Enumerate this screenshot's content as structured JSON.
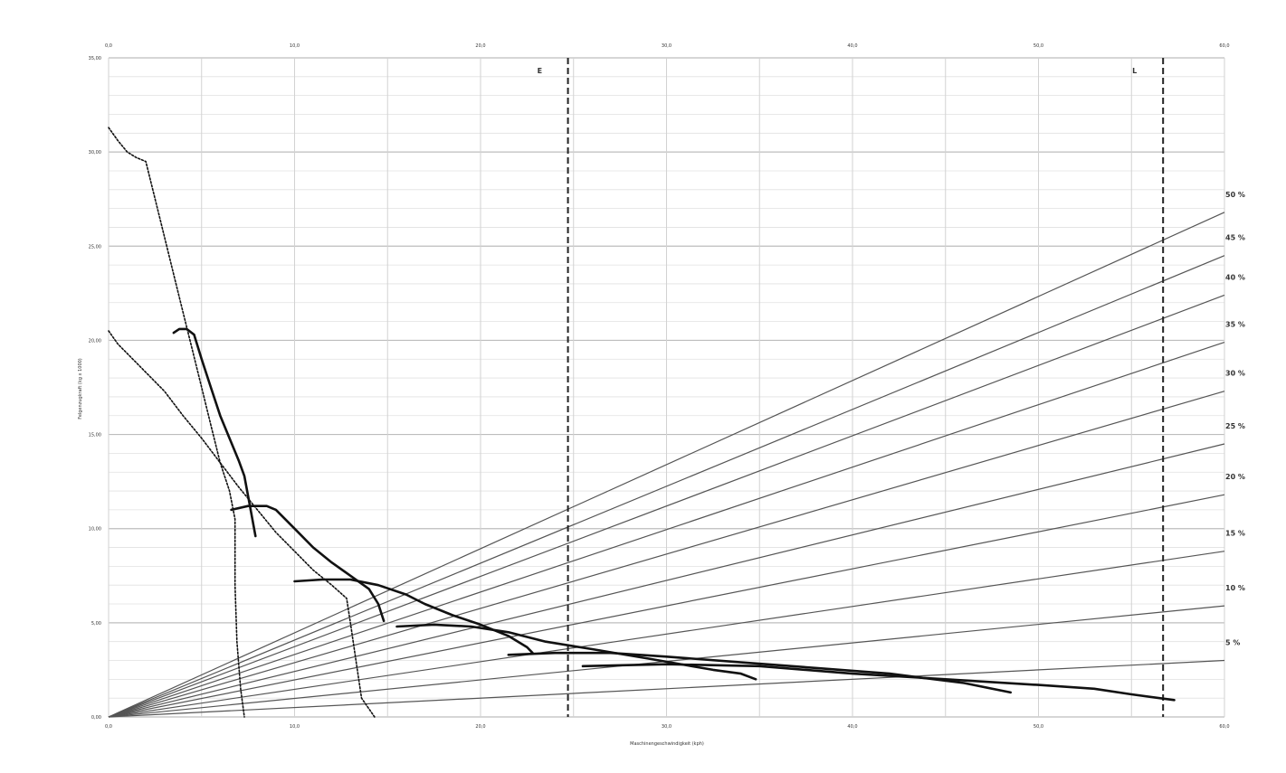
{
  "chart_data": {
    "type": "line",
    "xlabel": "Maschinengeschwindigkeit (kph)",
    "ylabel": "Felgenzugkraft (kg x 1000)",
    "xlim": [
      0,
      60
    ],
    "ylim": [
      0,
      35
    ],
    "x_ticks": [
      "0,0",
      "10,0",
      "20,0",
      "30,0",
      "40,0",
      "50,0",
      "60,0"
    ],
    "y_ticks": [
      "0,00",
      "5,00",
      "10,00",
      "15,00",
      "20,00",
      "25,00",
      "30,00",
      "35,00"
    ],
    "grid": true,
    "markers": [
      {
        "label": "E",
        "x": 24.7
      },
      {
        "label": "L",
        "x": 56.7
      }
    ],
    "grade_lines": [
      {
        "label": "5 %",
        "end_y": 3.0
      },
      {
        "label": "10 %",
        "end_y": 5.9
      },
      {
        "label": "15 %",
        "end_y": 8.8
      },
      {
        "label": "20 %",
        "end_y": 11.8
      },
      {
        "label": "25 %",
        "end_y": 14.5
      },
      {
        "label": "30 %",
        "end_y": 17.3
      },
      {
        "label": "35 %",
        "end_y": 19.9
      },
      {
        "label": "40 %",
        "end_y": 22.4
      },
      {
        "label": "45 %",
        "end_y": 24.5
      },
      {
        "label": "50 %",
        "end_y": 26.8
      }
    ],
    "series": [
      {
        "style": "solid",
        "points": [
          [
            3.5,
            20.4
          ],
          [
            3.8,
            20.6
          ],
          [
            4.2,
            20.6
          ],
          [
            4.6,
            20.3
          ],
          [
            5.0,
            19.0
          ],
          [
            5.5,
            17.5
          ],
          [
            6.0,
            16.0
          ],
          [
            6.5,
            14.8
          ],
          [
            7.0,
            13.6
          ],
          [
            7.3,
            12.8
          ],
          [
            7.6,
            11.2
          ],
          [
            7.9,
            9.6
          ]
        ]
      },
      {
        "style": "solid",
        "points": [
          [
            6.6,
            11.0
          ],
          [
            7.5,
            11.2
          ],
          [
            8.5,
            11.2
          ],
          [
            9.0,
            11.0
          ],
          [
            10.0,
            10.0
          ],
          [
            11.0,
            9.0
          ],
          [
            12.0,
            8.2
          ],
          [
            13.0,
            7.5
          ],
          [
            14.0,
            6.8
          ],
          [
            14.5,
            6.0
          ],
          [
            14.8,
            5.1
          ]
        ]
      },
      {
        "style": "solid",
        "points": [
          [
            10.0,
            7.2
          ],
          [
            11.5,
            7.3
          ],
          [
            13.0,
            7.3
          ],
          [
            14.5,
            7.0
          ],
          [
            16.0,
            6.5
          ],
          [
            17.0,
            6.0
          ],
          [
            18.5,
            5.4
          ],
          [
            20.0,
            4.9
          ],
          [
            21.5,
            4.3
          ],
          [
            22.5,
            3.7
          ],
          [
            22.8,
            3.4
          ]
        ]
      },
      {
        "style": "solid",
        "points": [
          [
            15.5,
            4.8
          ],
          [
            17.5,
            4.9
          ],
          [
            19.5,
            4.8
          ],
          [
            21.5,
            4.5
          ],
          [
            23.5,
            4.0
          ],
          [
            26.0,
            3.6
          ],
          [
            29.0,
            3.1
          ],
          [
            32.5,
            2.5
          ],
          [
            34.0,
            2.3
          ],
          [
            34.8,
            2.0
          ]
        ]
      },
      {
        "style": "solid",
        "points": [
          [
            21.5,
            3.3
          ],
          [
            24.0,
            3.4
          ],
          [
            27.0,
            3.4
          ],
          [
            30.0,
            3.2
          ],
          [
            34.0,
            2.9
          ],
          [
            38.0,
            2.6
          ],
          [
            42.0,
            2.3
          ],
          [
            46.0,
            1.8
          ],
          [
            48.5,
            1.3
          ]
        ]
      },
      {
        "style": "solid",
        "points": [
          [
            25.5,
            2.7
          ],
          [
            30.0,
            2.8
          ],
          [
            35.0,
            2.7
          ],
          [
            40.0,
            2.3
          ],
          [
            45.0,
            2.0
          ],
          [
            50.0,
            1.7
          ],
          [
            53.0,
            1.5
          ],
          [
            55.0,
            1.2
          ],
          [
            57.3,
            0.9
          ]
        ]
      },
      {
        "style": "dotted",
        "points": [
          [
            0.0,
            31.3
          ],
          [
            0.5,
            30.6
          ],
          [
            1.0,
            30.0
          ],
          [
            1.5,
            29.7
          ],
          [
            2.0,
            29.5
          ],
          [
            2.5,
            27.5
          ],
          [
            3.0,
            25.5
          ],
          [
            3.5,
            23.5
          ],
          [
            4.0,
            21.5
          ],
          [
            4.5,
            19.5
          ],
          [
            5.0,
            17.5
          ],
          [
            5.5,
            15.5
          ],
          [
            6.0,
            13.5
          ],
          [
            6.5,
            12.0
          ],
          [
            6.8,
            10.5
          ],
          [
            6.8,
            7.0
          ],
          [
            6.9,
            4.0
          ],
          [
            7.1,
            1.5
          ],
          [
            7.3,
            0.0
          ]
        ]
      },
      {
        "style": "dotted",
        "points": [
          [
            0.0,
            20.5
          ],
          [
            0.5,
            19.8
          ],
          [
            1.0,
            19.3
          ],
          [
            2.0,
            18.3
          ],
          [
            3.0,
            17.3
          ],
          [
            4.0,
            16.0
          ],
          [
            5.0,
            14.8
          ],
          [
            6.0,
            13.5
          ],
          [
            7.0,
            12.2
          ],
          [
            8.0,
            11.0
          ],
          [
            9.0,
            9.8
          ],
          [
            10.0,
            8.8
          ],
          [
            11.0,
            7.8
          ],
          [
            12.0,
            7.0
          ],
          [
            12.8,
            6.3
          ],
          [
            13.0,
            5.0
          ],
          [
            13.3,
            3.0
          ],
          [
            13.6,
            1.0
          ],
          [
            14.3,
            0.0
          ]
        ]
      }
    ]
  }
}
